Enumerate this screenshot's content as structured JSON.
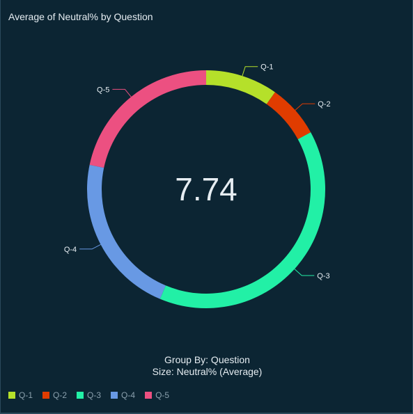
{
  "title": "Average of Neutral% by Question",
  "center_value": "7.74",
  "caption": {
    "group_by": "Group By: Question",
    "size": "Size: Neutral% (Average)"
  },
  "legend": [
    {
      "label": "Q-1",
      "color": "#b5e02a"
    },
    {
      "label": "Q-2",
      "color": "#e03c00"
    },
    {
      "label": "Q-3",
      "color": "#22f0a6"
    },
    {
      "label": "Q-4",
      "color": "#6899e4"
    },
    {
      "label": "Q-5",
      "color": "#ec5081"
    }
  ],
  "chart_data": {
    "type": "pie",
    "style": "donut",
    "title": "Average of Neutral% by Question",
    "center_label": "7.74",
    "categories": [
      "Q-1",
      "Q-2",
      "Q-3",
      "Q-4",
      "Q-5"
    ],
    "values": [
      3.8,
      2.8,
      15.2,
      8.5,
      8.4
    ],
    "colors": [
      "#b5e02a",
      "#e03c00",
      "#22f0a6",
      "#6899e4",
      "#ec5081"
    ],
    "legend_position": "bottom-left"
  }
}
